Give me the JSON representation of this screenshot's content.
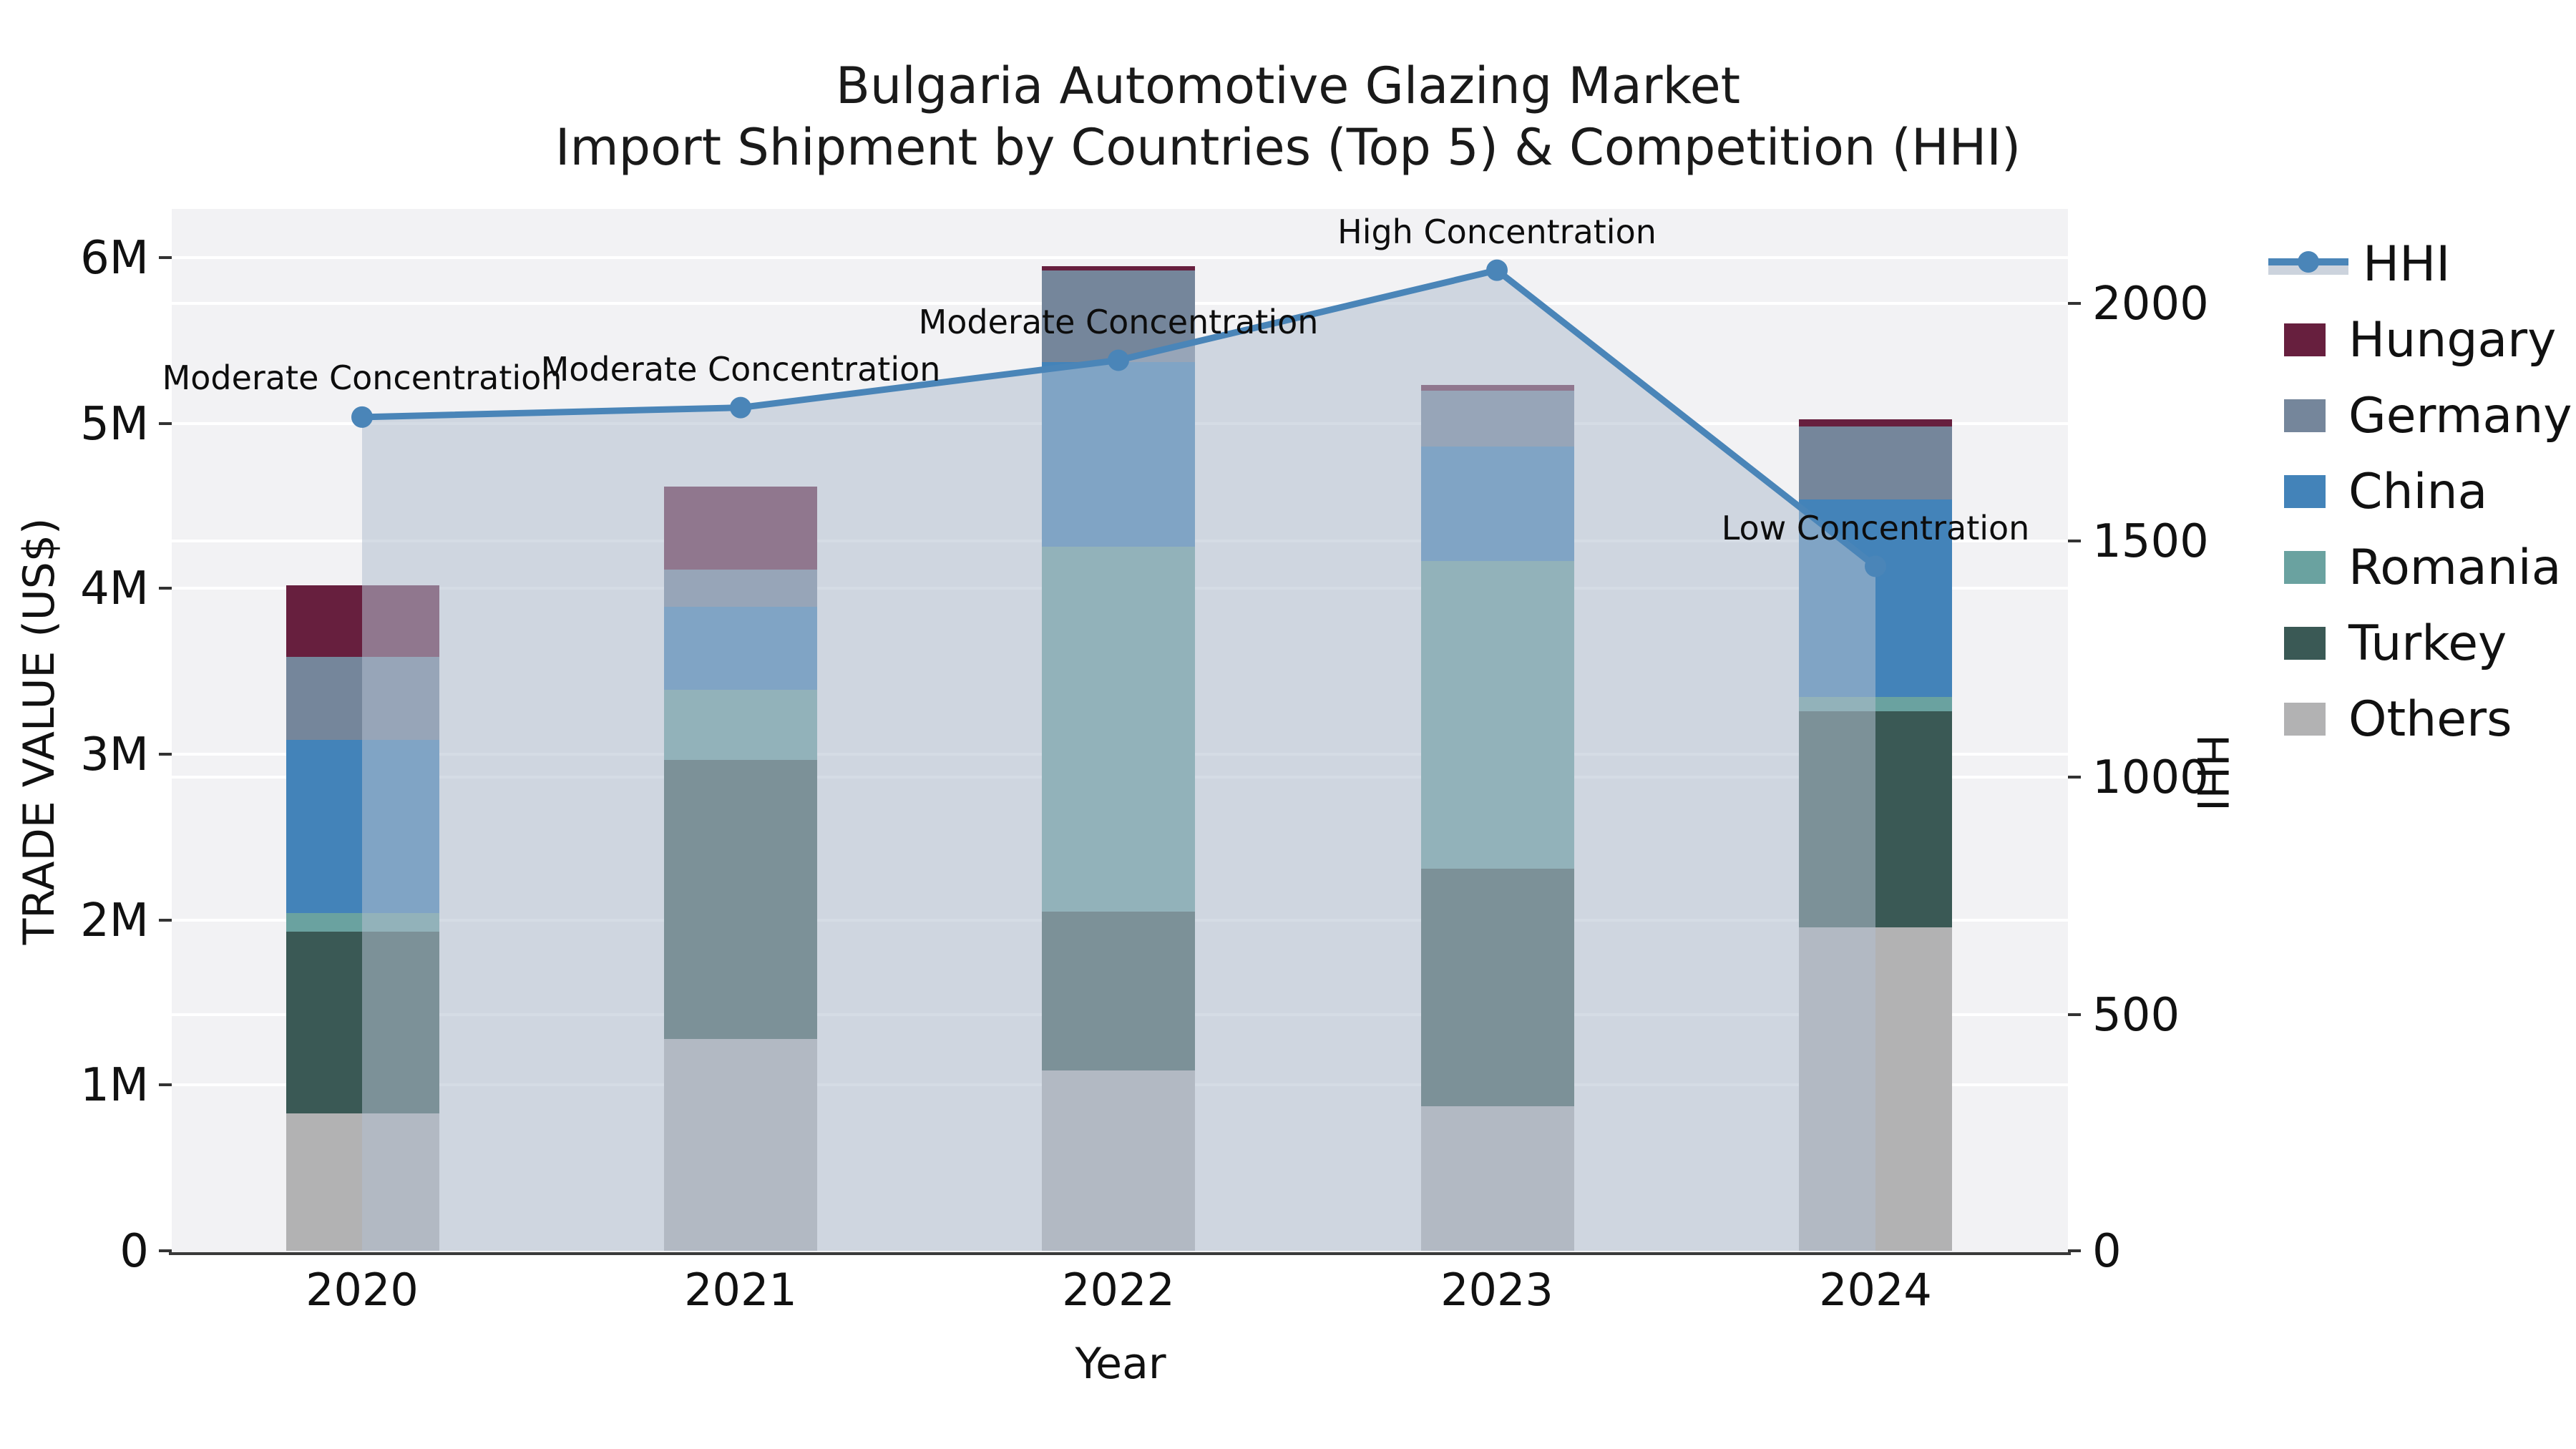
{
  "title": {
    "line1": "Bulgaria Automotive Glazing Market",
    "line2": "Import Shipment by Countries (Top 5) & Competition (HHI)"
  },
  "chart_data": {
    "type": "bar",
    "subtype": "stacked-bars-with-line-overlay",
    "title": "Bulgaria Automotive Glazing Market Import Shipment by Countries (Top 5) & Competition (HHI)",
    "xlabel": "Year",
    "ylabel_left": "TRADE VALUE (US$)",
    "ylabel_right": "HHI",
    "categories": [
      "2020",
      "2021",
      "2022",
      "2023",
      "2024"
    ],
    "stack_order_bottom_to_top": [
      "Others",
      "Turkey",
      "Romania",
      "China",
      "Germany",
      "Hungary"
    ],
    "series": [
      {
        "name": "Hungary",
        "color": "#671f3e",
        "values_million_usd": [
          0.43,
          0.5,
          0.03,
          0.03,
          0.04
        ]
      },
      {
        "name": "Germany",
        "color": "#75869b",
        "values_million_usd": [
          0.5,
          0.23,
          0.55,
          0.34,
          0.44
        ]
      },
      {
        "name": "China",
        "color": "#4383b9",
        "values_million_usd": [
          1.05,
          0.5,
          1.12,
          0.69,
          1.19
        ]
      },
      {
        "name": "Romania",
        "color": "#6aa2a0",
        "values_million_usd": [
          0.11,
          0.42,
          2.2,
          1.86,
          0.09
        ]
      },
      {
        "name": "Turkey",
        "color": "#3a5955",
        "values_million_usd": [
          1.1,
          1.69,
          0.96,
          1.44,
          1.31
        ]
      },
      {
        "name": "Others",
        "color": "#b2b2b3",
        "values_million_usd": [
          0.83,
          1.28,
          1.09,
          0.87,
          1.95
        ]
      }
    ],
    "bar_totals_million_usd": [
      4.02,
      4.62,
      5.95,
      5.23,
      5.02
    ],
    "line_series": {
      "name": "HHI",
      "color": "#4a85b8",
      "fill_color": "rgba(178,191,207,0.55)",
      "values": [
        1760,
        1780,
        1880,
        2070,
        1445
      ]
    },
    "annotations": [
      {
        "year": "2020",
        "text": "Moderate Concentration"
      },
      {
        "year": "2021",
        "text": "Moderate Concentration"
      },
      {
        "year": "2022",
        "text": "Moderate Concentration"
      },
      {
        "year": "2023",
        "text": "High Concentration"
      },
      {
        "year": "2024",
        "text": "Low Concentration"
      }
    ],
    "y_left_ticks": [
      "0",
      "1M",
      "2M",
      "3M",
      "4M",
      "5M",
      "6M"
    ],
    "y_right_ticks": [
      "0",
      "500",
      "1000",
      "1500",
      "2000"
    ],
    "ylim_left_million_usd": [
      0,
      6.3
    ],
    "ylim_right_hhi": [
      0,
      2200
    ],
    "grid": true,
    "legend_position": "right",
    "legend_items": [
      "HHI",
      "Hungary",
      "Germany",
      "China",
      "Romania",
      "Turkey",
      "Others"
    ],
    "plot_background": "#f2f2f4"
  }
}
